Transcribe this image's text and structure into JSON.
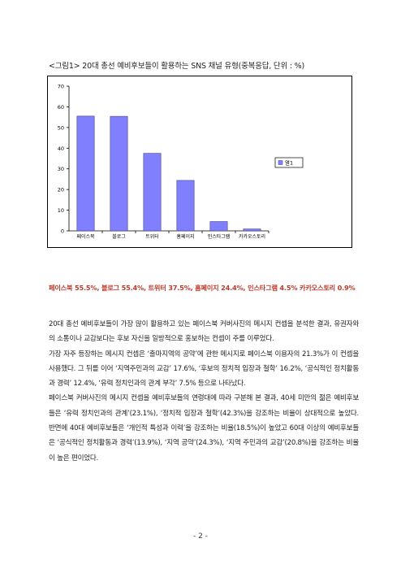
{
  "caption": "<그림1> 20대 총선 예비후보들이 활용하는 SNS 채널 유형(중복응답, 단위 : %)",
  "chart_data": {
    "type": "bar",
    "categories": [
      "페이스북",
      "블로그",
      "트위터",
      "홈페이지",
      "인스타그램",
      "카카오스토리"
    ],
    "series": [
      {
        "name": "열1",
        "values": [
          55.5,
          55.4,
          37.5,
          24.4,
          4.5,
          0.9
        ]
      }
    ],
    "yticks": [
      0,
      10,
      20,
      30,
      40,
      50,
      60,
      70
    ],
    "ylim": [
      0,
      70
    ],
    "legend_position": "right",
    "bar_color": "#8080ff"
  },
  "highlight": "페이스북 55.5%, 블로그 55.4%, 트위터 37.5%, 홈페이지 24.4%, 인스타그램 4.5% 카카오스토리 0.9%",
  "paragraphs": [
    "20대 총선 예비후보들이 가장 많이 활용하고 있는 페이스북 커버사진의 메시지 컨셉을 분석한 결과, 유권자와의 소통이나 교감보다는 후보 자신을 일방적으로 홍보하는 컨셉이 주를 이루었다.",
    "가장 자주 등장하는 메시지 컨셉은 ‘출마지역의 공약’에 관한 메시지로 페이스북 이용자의 21.3%가 이 컨셉을 사용했다. 그 뒤를 이어 ‘지역주민과의 교감’ 17.6%, ‘후보의 정치적 입장과 철학’ 16.2%, ‘공식적인 정치활동과 경력’ 12.4%, ‘유력 정치인과의 관계 부각’ 7.5% 등으로 나타났다.",
    "페이스북 커버사진의 메시지 컨셉을 예비후보들의 연령대에 따라 구분해 본 결과, 40세 미만의 젊은 예비후보들은 ‘유력 정치인과의 관계’(23.1%), ‘정치적 입장과 철학’(42.3%)을 강조하는 비율이 상대적으로 높았다. 반면에 40대 예비후보들은 ‘개인적 특성과 이력’을 강조하는 비율(18.5%)이 높았고 60대 이상의 예비후보들은 ‘공식적인 정치활동과 경력’(13.9%), ‘지역 공약’(24.3%), ‘지역 주민과의 교감’(20.8%)을 강조하는 비율이 높은 편이었다."
  ],
  "page_number": "- 2 -"
}
